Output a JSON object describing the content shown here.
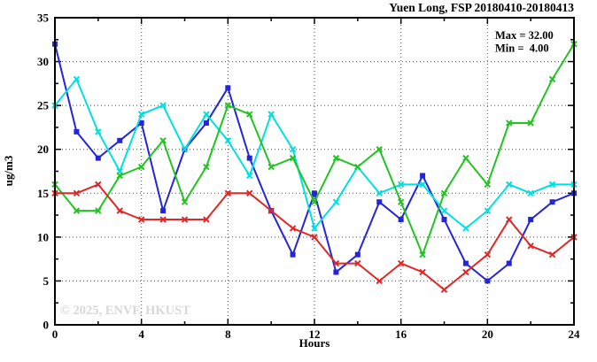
{
  "title": "Yuen Long, FSP 20180410-20180413",
  "legend": {
    "max_label": "Max = 32.00",
    "min_label": "Min =  4.00"
  },
  "watermark": "© 2025, ENVF, HKUST",
  "chart_data": {
    "type": "line",
    "title": "Yuen Long, FSP 20180410-20180413",
    "xlabel": "Hours",
    "ylabel": "ug/m3",
    "xlim": [
      0,
      24
    ],
    "ylim": [
      0,
      35
    ],
    "x_major_ticks": [
      0,
      4,
      8,
      12,
      16,
      20,
      24
    ],
    "x_minor_ticks": [
      2,
      6,
      10,
      14,
      18,
      22
    ],
    "y_major_ticks": [
      0,
      5,
      10,
      15,
      20,
      25,
      30,
      35
    ],
    "y_minor_ticks": [
      2.5,
      7.5,
      12.5,
      17.5,
      22.5,
      27.5,
      32.5
    ],
    "grid": true,
    "legend_position": "top-right-inside",
    "stats": {
      "max": 32.0,
      "min": 4.0
    },
    "x": [
      0,
      1,
      2,
      3,
      4,
      5,
      6,
      7,
      8,
      9,
      10,
      11,
      12,
      13,
      14,
      15,
      16,
      17,
      18,
      19,
      20,
      21,
      22,
      23,
      24
    ],
    "series": [
      {
        "name": "series-blue",
        "color": "#2424d8",
        "marker": "square",
        "values": [
          32,
          22,
          19,
          21,
          23,
          13,
          20,
          23,
          27,
          19,
          13,
          8,
          15,
          6,
          8,
          14,
          12,
          17,
          12,
          7,
          5,
          7,
          12,
          14,
          15
        ]
      },
      {
        "name": "series-cyan",
        "color": "#00e0e0",
        "marker": "x",
        "values": [
          25,
          28,
          22,
          17.5,
          24,
          25,
          20,
          24,
          21,
          17,
          24,
          20,
          11,
          14,
          18,
          15,
          16,
          16,
          13,
          11,
          13,
          16,
          15,
          16,
          16
        ]
      },
      {
        "name": "series-green",
        "color": "#22c422",
        "marker": "x",
        "values": [
          16,
          13,
          13,
          17,
          18,
          21,
          14,
          18,
          25,
          24,
          18,
          19,
          14,
          19,
          18,
          20,
          14,
          8,
          15,
          19,
          16,
          23,
          23,
          28,
          32
        ]
      },
      {
        "name": "series-red",
        "color": "#e02828",
        "marker": "x",
        "values": [
          15,
          15,
          16,
          13,
          12,
          12,
          12,
          12,
          15,
          15,
          13,
          11,
          10,
          7,
          7,
          5,
          7,
          6,
          4,
          6,
          8,
          12,
          9,
          8,
          10
        ]
      }
    ]
  }
}
